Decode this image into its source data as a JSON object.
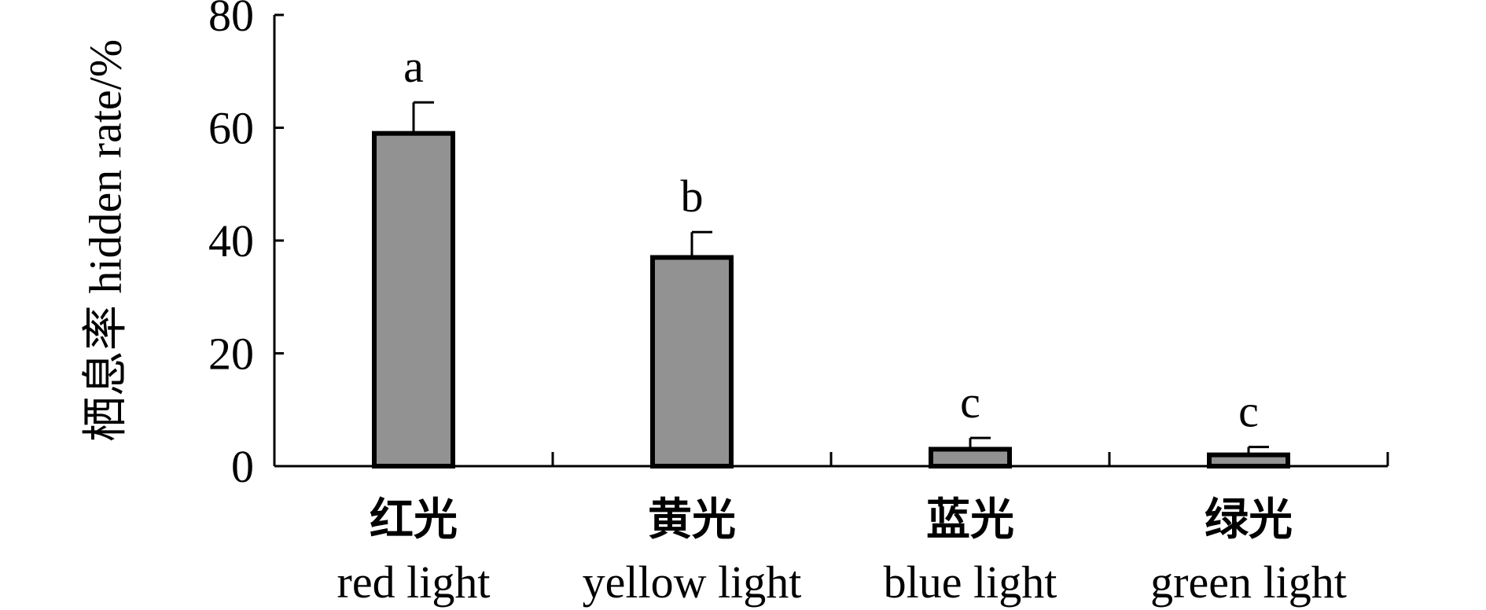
{
  "chart_data": {
    "type": "bar",
    "ylabel": "栖息率 hidden rate/%",
    "categories": [
      [
        "红光",
        "red light"
      ],
      [
        "黄光",
        "yellow light"
      ],
      [
        "蓝光",
        "blue light"
      ],
      [
        "绿光",
        "green light"
      ]
    ],
    "values": [
      59,
      37,
      3,
      2
    ],
    "errors": [
      5.5,
      4.5,
      2,
      1.4
    ],
    "letters": [
      "a",
      "b",
      "c",
      "c"
    ],
    "color": "#929292",
    "ylim": [
      0,
      80
    ],
    "yticks": [
      0,
      20,
      40,
      60,
      80
    ],
    "grid": false
  }
}
